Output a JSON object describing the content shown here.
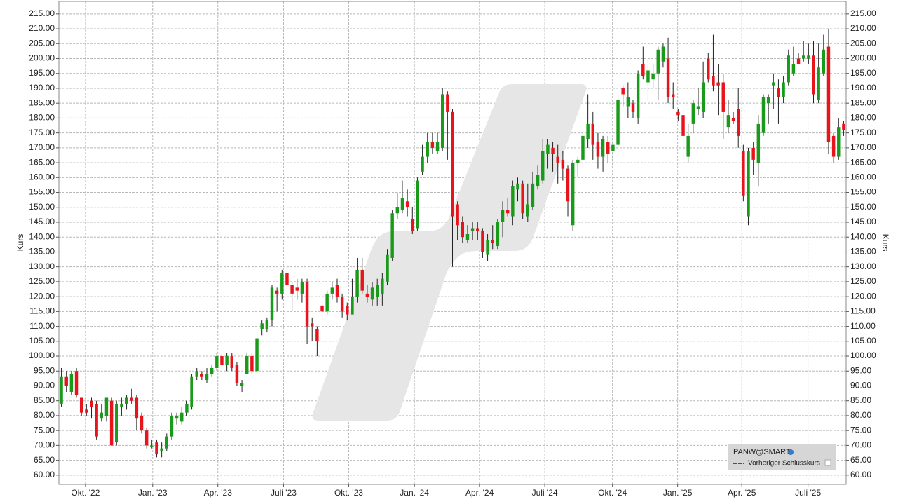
{
  "chart_data": {
    "type": "candlestick",
    "series_name": "PANW@SMART",
    "reference_line_label": "Vorheriger Schlusskurs",
    "y_label": "Kurs",
    "up_color": "#1a9a1a",
    "down_color": "#e8141c",
    "grid": true,
    "legend_position": "lower right",
    "categories": [
      null,
      null,
      null,
      null,
      null,
      null,
      null,
      null,
      null,
      null,
      null,
      null,
      null,
      null,
      null,
      null,
      null,
      null,
      null,
      null,
      null,
      null,
      null,
      null,
      null,
      null,
      null,
      null,
      null,
      null,
      null,
      null,
      null,
      null,
      null,
      null,
      null,
      null,
      null,
      null,
      null,
      null,
      null,
      null,
      null,
      null,
      null,
      null,
      null,
      null,
      null,
      null,
      null,
      null,
      null,
      null,
      null,
      null,
      null,
      null,
      null,
      null,
      null,
      null,
      null,
      null,
      null,
      null,
      null,
      null,
      null,
      null,
      null,
      null,
      null,
      null,
      null,
      null,
      null,
      null,
      null,
      null,
      null,
      null,
      null,
      null,
      null,
      null,
      null,
      null,
      null,
      null,
      null,
      null,
      null,
      null,
      null,
      null,
      null,
      null,
      null,
      null,
      null,
      null,
      null,
      null,
      null,
      null,
      null,
      null,
      null,
      null,
      null,
      null,
      null,
      null,
      null,
      null,
      null,
      null,
      null,
      null,
      null,
      null,
      null,
      null,
      null,
      null,
      null,
      null,
      null,
      null,
      null,
      null,
      null,
      null,
      null,
      null,
      null,
      null,
      null,
      null,
      null,
      null,
      null,
      null,
      null,
      null,
      null,
      null,
      null,
      null,
      null,
      null,
      null,
      null,
      null
    ],
    "open": [
      84,
      93,
      88,
      95,
      86,
      82,
      85,
      84,
      79,
      80,
      85,
      71,
      83,
      84,
      86,
      86,
      80,
      75,
      70,
      71,
      68,
      69,
      73,
      79,
      78,
      81,
      83,
      93,
      94,
      92,
      94,
      96,
      100,
      97,
      100,
      97,
      90,
      94,
      100,
      95,
      109,
      109,
      112,
      122,
      121,
      128,
      124,
      123,
      121,
      125,
      111,
      109,
      117,
      115,
      121,
      124,
      120,
      117,
      114,
      120,
      129,
      121,
      119,
      120,
      121,
      125,
      133,
      148,
      149,
      152,
      146,
      143,
      162,
      167,
      172,
      169,
      170,
      188,
      182,
      151,
      145,
      139,
      142,
      143,
      142,
      134,
      139,
      137,
      145,
      149,
      147,
      156,
      158,
      147,
      150,
      157,
      159,
      168,
      170,
      167,
      166,
      163,
      144,
      165,
      166,
      173,
      178,
      172,
      167,
      172,
      169,
      171,
      190,
      184,
      185,
      180,
      198,
      192,
      193,
      195,
      199,
      200,
      188,
      182,
      181,
      167,
      178,
      183,
      182,
      200,
      194,
      192,
      192,
      177,
      180,
      183,
      169,
      147,
      170,
      165,
      175,
      185,
      191,
      190,
      187,
      192,
      195,
      200,
      200,
      200,
      201,
      186,
      195,
      204,
      174,
      167,
      178
    ],
    "high": [
      96,
      95,
      95,
      96,
      86,
      84,
      86,
      85,
      84,
      86,
      86,
      85,
      86,
      87,
      89,
      87,
      81,
      76,
      72,
      72,
      71,
      74,
      81,
      81,
      83,
      85,
      94,
      96,
      95,
      96,
      97,
      101,
      101,
      101,
      101,
      98,
      92,
      101,
      101,
      107,
      112,
      113,
      124,
      123,
      129,
      130,
      125,
      126,
      126,
      126,
      113,
      110,
      119,
      122,
      125,
      126,
      121,
      118,
      126,
      133,
      133,
      124,
      125,
      126,
      128,
      136,
      149,
      155,
      159,
      156,
      150,
      160,
      171,
      175,
      175,
      175,
      190,
      189,
      183,
      152,
      147,
      144,
      145,
      145,
      143,
      141,
      144,
      146,
      152,
      153,
      159,
      160,
      159,
      158,
      162,
      164,
      173,
      173,
      172,
      171,
      169,
      164,
      166,
      167,
      175,
      188,
      182,
      175,
      174,
      174,
      173,
      188,
      191,
      192,
      186,
      196,
      204,
      200,
      198,
      204,
      205,
      207,
      192,
      183,
      184,
      178,
      186,
      190,
      199,
      202,
      208,
      198,
      195,
      186,
      182,
      190,
      171,
      170,
      172,
      181,
      188,
      188,
      195,
      193,
      194,
      203,
      204,
      202,
      206,
      205,
      206,
      205,
      208,
      210,
      175,
      180,
      179
    ],
    "low": [
      83,
      88,
      87,
      86,
      80,
      80,
      79,
      72,
      78,
      78,
      70,
      70,
      80,
      82,
      84,
      75,
      74,
      69,
      69,
      66,
      66,
      68,
      72,
      77,
      77,
      80,
      82,
      92,
      92,
      91,
      93,
      95,
      96,
      95,
      95,
      90,
      88,
      94,
      94,
      94,
      107,
      108,
      110,
      115,
      119,
      123,
      115,
      119,
      118,
      104,
      105,
      100,
      112,
      114,
      119,
      118,
      113,
      112,
      114,
      118,
      121,
      118,
      117,
      117,
      117,
      124,
      132,
      146,
      148,
      147,
      141,
      142,
      161,
      165,
      168,
      168,
      169,
      166,
      130,
      139,
      138,
      138,
      139,
      139,
      133,
      132,
      136,
      136,
      140,
      147,
      144,
      152,
      146,
      145,
      149,
      156,
      158,
      163,
      162,
      158,
      159,
      147,
      142,
      160,
      163,
      170,
      166,
      163,
      162,
      165,
      164,
      168,
      184,
      180,
      180,
      178,
      193,
      186,
      190,
      186,
      197,
      185,
      183,
      179,
      166,
      165,
      175,
      181,
      180,
      192,
      189,
      181,
      173,
      175,
      178,
      170,
      152,
      144,
      161,
      157,
      174,
      178,
      183,
      178,
      185,
      191,
      194,
      198,
      199,
      198,
      185,
      185,
      194,
      168,
      165,
      166,
      174
    ],
    "close": [
      93,
      90,
      94,
      87,
      81,
      81,
      83,
      73,
      81,
      86,
      70,
      84,
      84,
      86,
      85,
      79,
      75,
      70,
      70,
      67,
      69,
      73,
      80,
      80,
      81,
      84,
      93,
      95,
      93,
      94,
      96,
      100,
      97,
      100,
      96,
      91,
      91,
      100,
      95,
      106,
      111,
      112,
      123,
      121,
      128,
      124,
      121,
      122,
      125,
      110,
      110,
      105,
      115,
      121,
      123,
      120,
      115,
      114,
      120,
      129,
      122,
      120,
      123,
      124,
      126,
      134,
      148,
      150,
      153,
      150,
      142,
      159,
      167,
      172,
      170,
      172,
      188,
      182,
      147,
      144,
      140,
      141,
      143,
      142,
      135,
      139,
      138,
      145,
      149,
      148,
      157,
      158,
      148,
      151,
      158,
      161,
      169,
      171,
      168,
      165,
      163,
      152,
      165,
      166,
      174,
      178,
      171,
      167,
      173,
      168,
      171,
      186,
      188,
      187,
      182,
      195,
      194,
      196,
      195,
      203,
      204,
      187,
      187,
      181,
      174,
      174,
      185,
      184,
      192,
      193,
      191,
      191,
      182,
      181,
      179,
      174,
      154,
      169,
      166,
      178,
      187,
      187,
      192,
      187,
      192,
      201,
      198,
      198,
      201,
      201,
      188,
      197,
      203,
      172,
      167,
      177,
      176
    ],
    "xlim": [
      -0.5,
      156.5
    ],
    "xticks": [
      {
        "value": 4.8,
        "label": "Okt. '22"
      },
      {
        "value": 18.2,
        "label": "Jan. '23"
      },
      {
        "value": 31.2,
        "label": "Apr. '23"
      },
      {
        "value": 44.3,
        "label": "Juli '23"
      },
      {
        "value": 57.3,
        "label": "Okt. '23"
      },
      {
        "value": 70.4,
        "label": "Jan. '24"
      },
      {
        "value": 83.4,
        "label": "Apr. '24"
      },
      {
        "value": 96.4,
        "label": "Juli '24"
      },
      {
        "value": 109.9,
        "label": "Okt. '24"
      },
      {
        "value": 122.9,
        "label": "Jan. '25"
      },
      {
        "value": 135.7,
        "label": "Apr. '25"
      },
      {
        "value": 148.9,
        "label": "Juli '25"
      }
    ],
    "ylim": [
      56.9,
      219.2
    ],
    "yticks": [
      {
        "value": 60,
        "label": "60.00"
      },
      {
        "value": 65,
        "label": "65.00"
      },
      {
        "value": 70,
        "label": "70.00"
      },
      {
        "value": 75,
        "label": "75.00"
      },
      {
        "value": 80,
        "label": "80.00"
      },
      {
        "value": 85,
        "label": "85.00"
      },
      {
        "value": 90,
        "label": "90.00"
      },
      {
        "value": 95,
        "label": "95.00"
      },
      {
        "value": 100,
        "label": "100.00"
      },
      {
        "value": 105,
        "label": "105.00"
      },
      {
        "value": 110,
        "label": "110.00"
      },
      {
        "value": 115,
        "label": "115.00"
      },
      {
        "value": 120,
        "label": "120.00"
      },
      {
        "value": 125,
        "label": "125.00"
      },
      {
        "value": 130,
        "label": "130.00"
      },
      {
        "value": 135,
        "label": "135.00"
      },
      {
        "value": 140,
        "label": "140.00"
      },
      {
        "value": 145,
        "label": "145.00"
      },
      {
        "value": 150,
        "label": "150.00"
      },
      {
        "value": 155,
        "label": "155.00"
      },
      {
        "value": 160,
        "label": "160.00"
      },
      {
        "value": 165,
        "label": "165.00"
      },
      {
        "value": 170,
        "label": "170.00"
      },
      {
        "value": 175,
        "label": "175.00"
      },
      {
        "value": 180,
        "label": "180.00"
      },
      {
        "value": 185,
        "label": "185.00"
      },
      {
        "value": 190,
        "label": "190.00"
      },
      {
        "value": 195,
        "label": "195.00"
      },
      {
        "value": 200,
        "label": "200.00"
      },
      {
        "value": 205,
        "label": "205.00"
      },
      {
        "value": 210,
        "label": "210.00"
      },
      {
        "value": 215,
        "label": "215.00"
      }
    ]
  }
}
